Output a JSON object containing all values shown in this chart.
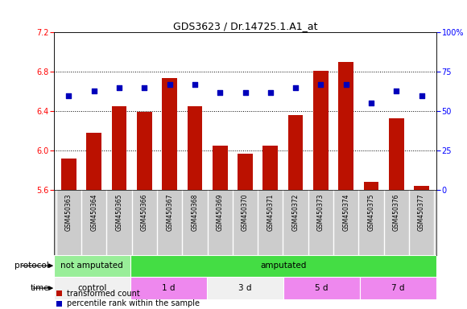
{
  "title": "GDS3623 / Dr.14725.1.A1_at",
  "samples": [
    "GSM450363",
    "GSM450364",
    "GSM450365",
    "GSM450366",
    "GSM450367",
    "GSM450368",
    "GSM450369",
    "GSM450370",
    "GSM450371",
    "GSM450372",
    "GSM450373",
    "GSM450374",
    "GSM450375",
    "GSM450376",
    "GSM450377"
  ],
  "bar_values": [
    5.92,
    6.18,
    6.45,
    6.39,
    6.74,
    6.45,
    6.05,
    5.97,
    6.05,
    6.36,
    6.81,
    6.9,
    5.68,
    6.33,
    5.64
  ],
  "dot_values": [
    60,
    63,
    65,
    65,
    67,
    67,
    62,
    62,
    62,
    65,
    67,
    67,
    55,
    63,
    60
  ],
  "bar_bottom": 5.6,
  "bar_color": "#bb1100",
  "dot_color": "#0000bb",
  "ylim_left": [
    5.6,
    7.2
  ],
  "ylim_right": [
    0,
    100
  ],
  "yticks_left": [
    5.6,
    6.0,
    6.4,
    6.8,
    7.2
  ],
  "yticks_right": [
    0,
    25,
    50,
    75,
    100
  ],
  "grid_values": [
    6.0,
    6.4,
    6.8
  ],
  "protocol_labels": [
    {
      "label": "not amputated",
      "start": 0,
      "end": 3,
      "color": "#99ee99"
    },
    {
      "label": "amputated",
      "start": 3,
      "end": 15,
      "color": "#44dd44"
    }
  ],
  "time_labels": [
    {
      "label": "control",
      "start": 0,
      "end": 3,
      "color": "#f0f0f0"
    },
    {
      "label": "1 d",
      "start": 3,
      "end": 6,
      "color": "#ee88ee"
    },
    {
      "label": "3 d",
      "start": 6,
      "end": 9,
      "color": "#f0f0f0"
    },
    {
      "label": "5 d",
      "start": 9,
      "end": 12,
      "color": "#ee88ee"
    },
    {
      "label": "7 d",
      "start": 12,
      "end": 15,
      "color": "#ee88ee"
    }
  ],
  "legend_items": [
    {
      "label": "transformed count",
      "color": "#bb1100"
    },
    {
      "label": "percentile rank within the sample",
      "color": "#0000bb"
    }
  ],
  "sample_bg_color": "#cccccc",
  "plot_bg_color": "#ffffff"
}
